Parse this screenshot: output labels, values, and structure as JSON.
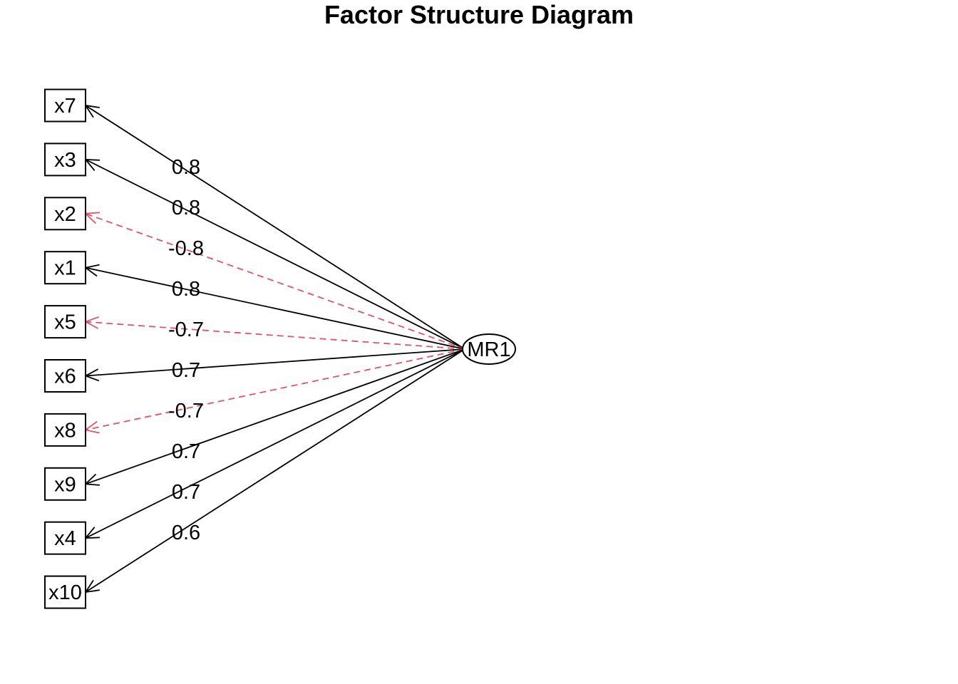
{
  "title": "Factor Structure Diagram",
  "factor": {
    "label": "MR1"
  },
  "colors": {
    "positive": "#000000",
    "negative": "#DF536B"
  },
  "variables": [
    {
      "label": "x7",
      "loading": "0.8",
      "negative": false
    },
    {
      "label": "x3",
      "loading": "0.8",
      "negative": false
    },
    {
      "label": "x2",
      "loading": "-0.8",
      "negative": true
    },
    {
      "label": "x1",
      "loading": "0.8",
      "negative": false
    },
    {
      "label": "x5",
      "loading": "-0.7",
      "negative": true
    },
    {
      "label": "x6",
      "loading": "0.7",
      "negative": false
    },
    {
      "label": "x8",
      "loading": "-0.7",
      "negative": true
    },
    {
      "label": "x9",
      "loading": "0.7",
      "negative": false
    },
    {
      "label": "x4",
      "loading": "0.7",
      "negative": false
    },
    {
      "label": "x10",
      "loading": "0.6",
      "negative": false
    }
  ]
}
